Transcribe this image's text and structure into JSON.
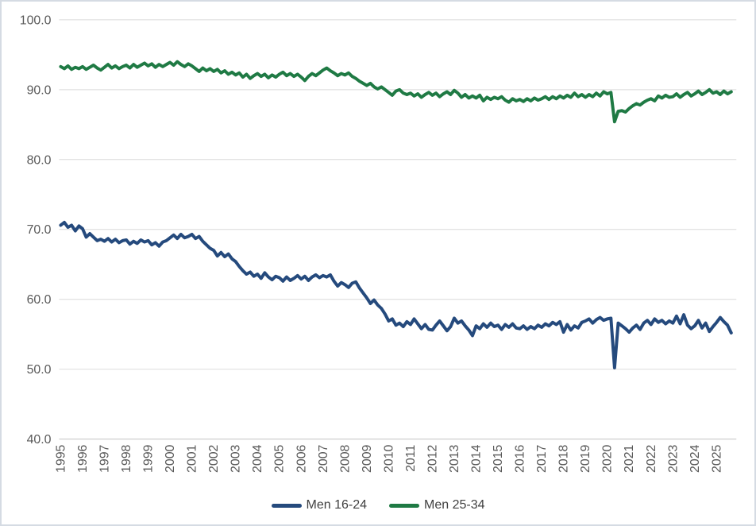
{
  "chart_data": {
    "type": "line",
    "title": "",
    "xlabel": "",
    "ylabel": "",
    "grid": "horizontal-only",
    "legend_position": "bottom-center",
    "ylim": [
      40,
      100
    ],
    "ytick_step": 10,
    "yticks": [
      "100.0",
      "90.0",
      "80.0",
      "70.0",
      "60.0",
      "50.0",
      "40.0"
    ],
    "xticks": [
      "1995",
      "1996",
      "1997",
      "1998",
      "1999",
      "2000",
      "2001",
      "2002",
      "2003",
      "2004",
      "2005",
      "2006",
      "2007",
      "2008",
      "2009",
      "2010",
      "2011",
      "2012",
      "2013",
      "2014",
      "2015",
      "2016",
      "2017",
      "2018",
      "2019",
      "2020",
      "2021",
      "2022",
      "2023",
      "2024",
      "2025"
    ],
    "x_start_year": 1995,
    "points_per_year": 6,
    "colors": {
      "gridline": "#d9d9d9",
      "axis_line": "#c3c3c3",
      "axis_text": "#595959",
      "legend_text": "#404040",
      "chart_border": "#d5dbe3"
    },
    "series": [
      {
        "name": "Men 16-24",
        "color": "#254a7d",
        "values": [
          70.6,
          71.0,
          70.3,
          70.6,
          69.8,
          70.5,
          70.1,
          68.9,
          69.4,
          68.9,
          68.4,
          68.6,
          68.3,
          68.7,
          68.2,
          68.6,
          68.1,
          68.4,
          68.5,
          67.9,
          68.3,
          68.0,
          68.5,
          68.2,
          68.4,
          67.8,
          68.1,
          67.6,
          68.2,
          68.4,
          68.8,
          69.2,
          68.7,
          69.3,
          68.8,
          69.0,
          69.3,
          68.7,
          69.0,
          68.3,
          67.8,
          67.3,
          67.0,
          66.2,
          66.7,
          66.1,
          66.5,
          65.8,
          65.4,
          64.7,
          64.1,
          63.6,
          63.9,
          63.3,
          63.6,
          63.0,
          63.8,
          63.2,
          62.8,
          63.3,
          63.1,
          62.6,
          63.2,
          62.7,
          63.0,
          63.4,
          62.9,
          63.3,
          62.7,
          63.2,
          63.5,
          63.1,
          63.4,
          63.2,
          63.5,
          62.6,
          61.9,
          62.4,
          62.1,
          61.7,
          62.3,
          62.5,
          61.6,
          60.9,
          60.2,
          59.4,
          59.9,
          59.2,
          58.7,
          57.9,
          56.9,
          57.2,
          56.3,
          56.6,
          56.1,
          56.8,
          56.4,
          57.2,
          56.5,
          55.8,
          56.4,
          55.7,
          55.6,
          56.3,
          56.9,
          56.2,
          55.5,
          56.1,
          57.3,
          56.6,
          56.9,
          56.2,
          55.6,
          54.8,
          56.2,
          55.8,
          56.5,
          56.0,
          56.6,
          56.1,
          56.3,
          55.7,
          56.4,
          56.0,
          56.5,
          55.9,
          55.8,
          56.2,
          55.7,
          56.1,
          55.8,
          56.3,
          56.0,
          56.5,
          56.2,
          56.7,
          56.4,
          56.8,
          55.3,
          56.4,
          55.6,
          56.2,
          55.9,
          56.7,
          56.9,
          57.2,
          56.6,
          57.1,
          57.4,
          57.0,
          57.2,
          57.3,
          50.2,
          56.6,
          56.2,
          55.8,
          55.3,
          55.9,
          56.3,
          55.7,
          56.6,
          57.0,
          56.4,
          57.2,
          56.7,
          57.0,
          56.5,
          56.9,
          56.6,
          57.6,
          56.5,
          57.8,
          56.3,
          55.8,
          56.2,
          57.0,
          55.9,
          56.6,
          55.4,
          56.1,
          56.7,
          57.4,
          56.8,
          56.3,
          55.2
        ]
      },
      {
        "name": "Men 25-34",
        "color": "#1f7a44",
        "values": [
          93.3,
          93.0,
          93.4,
          92.9,
          93.2,
          93.0,
          93.3,
          92.9,
          93.2,
          93.5,
          93.1,
          92.8,
          93.2,
          93.6,
          93.1,
          93.4,
          93.0,
          93.3,
          93.5,
          93.1,
          93.6,
          93.2,
          93.5,
          93.8,
          93.4,
          93.7,
          93.2,
          93.6,
          93.3,
          93.6,
          93.9,
          93.5,
          94.0,
          93.6,
          93.3,
          93.7,
          93.4,
          93.0,
          92.6,
          93.1,
          92.7,
          93.0,
          92.6,
          92.9,
          92.4,
          92.7,
          92.2,
          92.5,
          92.1,
          92.4,
          91.8,
          92.2,
          91.6,
          92.0,
          92.3,
          91.9,
          92.2,
          91.7,
          92.1,
          91.8,
          92.2,
          92.5,
          92.0,
          92.3,
          91.9,
          92.2,
          91.8,
          91.3,
          91.9,
          92.3,
          92.0,
          92.4,
          92.8,
          93.1,
          92.7,
          92.4,
          92.0,
          92.3,
          92.1,
          92.4,
          91.9,
          91.6,
          91.2,
          90.9,
          90.6,
          90.9,
          90.4,
          90.1,
          90.4,
          90.0,
          89.6,
          89.2,
          89.8,
          90.0,
          89.5,
          89.3,
          89.5,
          89.1,
          89.4,
          88.9,
          89.3,
          89.6,
          89.2,
          89.5,
          89.0,
          89.4,
          89.7,
          89.3,
          89.9,
          89.5,
          88.9,
          89.3,
          88.8,
          89.1,
          88.8,
          89.2,
          88.4,
          88.9,
          88.6,
          88.9,
          88.7,
          89.0,
          88.5,
          88.2,
          88.7,
          88.4,
          88.6,
          88.3,
          88.7,
          88.4,
          88.8,
          88.5,
          88.7,
          89.0,
          88.6,
          89.0,
          88.7,
          89.1,
          88.8,
          89.2,
          88.9,
          89.5,
          89.0,
          89.3,
          88.9,
          89.3,
          89.0,
          89.5,
          89.1,
          89.7,
          89.4,
          89.6,
          85.4,
          86.9,
          87.0,
          86.8,
          87.3,
          87.7,
          88.0,
          87.8,
          88.2,
          88.5,
          88.7,
          88.4,
          89.1,
          88.8,
          89.2,
          88.9,
          89.0,
          89.4,
          88.9,
          89.3,
          89.6,
          89.1,
          89.4,
          89.8,
          89.3,
          89.6,
          90.0,
          89.5,
          89.7,
          89.3,
          89.8,
          89.4,
          89.7
        ]
      }
    ]
  }
}
